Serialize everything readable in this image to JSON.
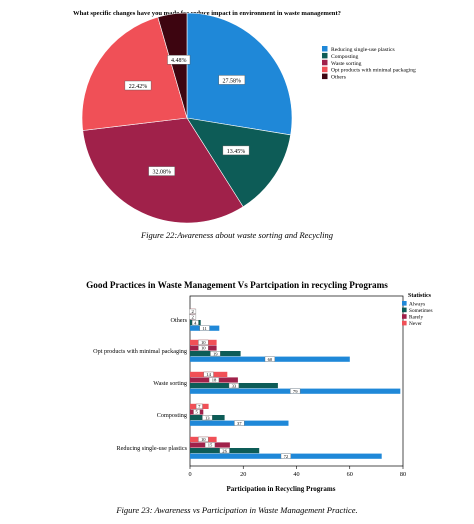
{
  "chart_data": [
    {
      "type": "pie",
      "title": "What specific changes have you made for reduce impact in environment in waste management?",
      "slices": [
        {
          "label": "Reducing single-use plastics",
          "value": 27.58,
          "value_label": "27.58%",
          "color": "#1f88d8"
        },
        {
          "label": "Composting",
          "value": 13.45,
          "value_label": "13.45%",
          "color": "#0d5c57"
        },
        {
          "label": "Waste sorting",
          "value": 32.08,
          "value_label": "32.08%",
          "color": "#a0214a"
        },
        {
          "label": "Opt products with minimal packaging",
          "value": 22.42,
          "value_label": "22.42%",
          "color": "#f05057"
        },
        {
          "label": "Others",
          "value": 4.48,
          "value_label": "4.48%",
          "color": "#3d0510"
        }
      ],
      "legend_position": "right"
    },
    {
      "type": "bar",
      "orientation": "horizontal",
      "title": "Good Practices in Waste Management Vs Partcipation in recycling Programs",
      "xlabel": "Participation in Recycling Programs",
      "ylabel": "",
      "xlim": [
        0,
        80
      ],
      "xticks": [
        0,
        20,
        40,
        60,
        80
      ],
      "legend_title": "Statistics",
      "legend_position": "top-right",
      "categories": [
        "Others",
        "Opt products with minimal packaging",
        "Waste sorting",
        "Composting",
        "Reducing single-use plastics"
      ],
      "series": [
        {
          "name": "Always",
          "color": "#1f88d8",
          "values": [
            11,
            60,
            79,
            37,
            72
          ]
        },
        {
          "name": "Sometimes",
          "color": "#0d5c57",
          "values": [
            4,
            19,
            33,
            13,
            26
          ]
        },
        {
          "name": "Rarely",
          "color": "#a0214a",
          "values": [
            2,
            10,
            18,
            5,
            15
          ]
        },
        {
          "name": "Never",
          "color": "#f05057",
          "values": [
            2,
            10,
            14,
            7,
            10
          ]
        }
      ]
    }
  ],
  "captions": {
    "figure22": "Figure 22:Awareness about waste sorting and Recycling",
    "figure23": "Figure 23: Awareness vs Participation in Waste Management Practice."
  }
}
